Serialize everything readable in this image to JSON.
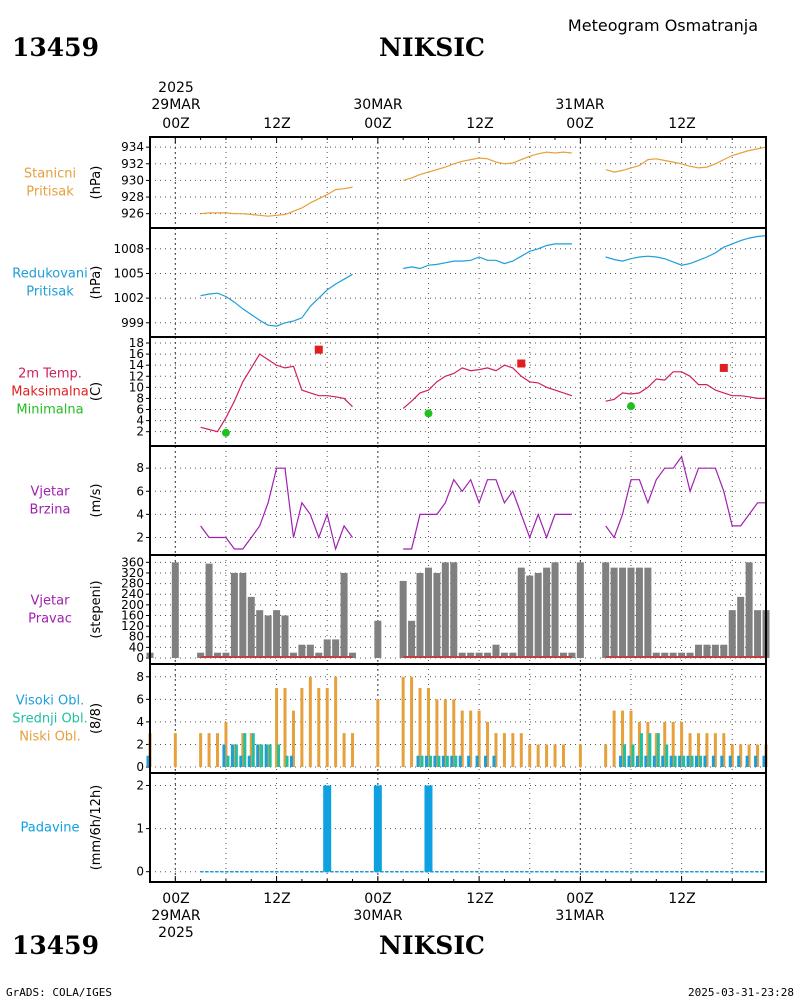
{
  "header": {
    "station_id": "13459",
    "station_name": "NIKSIC",
    "title": "Meteogram Osmatranja"
  },
  "footer": {
    "credit": "GrADS: COLA/IGES",
    "timestamp": "2025-03-31-23:28"
  },
  "time_axis": {
    "year": "2025",
    "day_labels": [
      "29MAR",
      "30MAR",
      "31MAR"
    ],
    "hour_labels": [
      "00Z",
      "12Z",
      "00Z",
      "12Z",
      "00Z",
      "12Z"
    ],
    "hour_values": [
      0,
      12,
      24,
      36,
      48,
      60
    ],
    "range": [
      -3,
      70
    ]
  },
  "colors": {
    "station_pressure": "#e6a03c",
    "sea_pressure": "#1e9ed8",
    "temp_label": "#d0205a",
    "temp_max": "#e02020",
    "temp_min": "#20c020",
    "wind": "#a020b0",
    "wind_dir_bar": "#808080",
    "wind_dir_line": "#c04040",
    "cloud_high": "#1e9ed8",
    "cloud_mid": "#20c0a0",
    "cloud_low": "#e6a03c",
    "precip": "#0ea0e0"
  },
  "chart_data": [
    {
      "type": "line",
      "name": "station_pressure",
      "label_lines": [
        "Stanicni",
        "Pritisak"
      ],
      "unit": "(hPa)",
      "ylim": [
        925,
        934.5
      ],
      "yticks": [
        926,
        928,
        930,
        932,
        934
      ],
      "x": [
        0,
        1,
        2,
        3,
        4,
        5,
        6,
        7,
        8,
        9,
        10,
        11,
        12,
        13,
        14,
        15,
        16,
        17,
        18,
        19,
        20,
        21
      ],
      "values": [
        926.1,
        926.2,
        926.2,
        926.1,
        926.1,
        926.0,
        926.0,
        925.9,
        925.8,
        925.8,
        925.8,
        925.8,
        925.9,
        926.1,
        926.5,
        927.0,
        927.5,
        928.0,
        928.5,
        929.0,
        929.1,
        929.3
      ],
      "segments": [
        {
          "x": [
            3,
            4,
            5,
            6,
            7,
            8,
            9,
            10,
            11,
            12,
            13,
            14,
            15,
            16,
            17,
            18,
            19,
            20,
            21
          ],
          "values": [
            926.0,
            926.1,
            926.1,
            926.1,
            926.0,
            926.0,
            925.9,
            925.8,
            925.7,
            925.8,
            925.9,
            926.3,
            926.7,
            927.3,
            927.8,
            928.3,
            928.9,
            929.0,
            929.2
          ]
        },
        {
          "x": [
            27,
            28,
            29,
            30,
            31,
            32,
            33,
            34,
            35,
            36,
            37,
            38,
            39,
            40,
            41,
            42,
            43,
            44,
            45,
            46,
            47
          ],
          "values": [
            930.0,
            930.3,
            930.7,
            931.0,
            931.3,
            931.6,
            932.0,
            932.3,
            932.5,
            932.7,
            932.6,
            932.2,
            932.0,
            932.1,
            932.5,
            932.9,
            933.2,
            933.4,
            933.3,
            933.4,
            933.3
          ]
        },
        {
          "x": [
            51,
            52,
            53,
            54,
            55,
            56,
            57,
            58,
            59,
            60,
            61,
            62,
            63,
            64,
            65,
            66,
            67,
            68,
            69,
            70
          ],
          "values": [
            931.3,
            931.0,
            931.2,
            931.5,
            931.8,
            932.5,
            932.6,
            932.4,
            932.2,
            932.0,
            931.7,
            931.5,
            931.6,
            932.0,
            932.5,
            933.0,
            933.3,
            933.6,
            933.8,
            934.0
          ]
        }
      ]
    },
    {
      "type": "line",
      "name": "sea_pressure",
      "label_lines": [
        "Redukovani",
        "Pritisak"
      ],
      "unit": "(hPa)",
      "ylim": [
        998,
        1009.8
      ],
      "yticks": [
        999,
        1002,
        1005,
        1008
      ],
      "segments": [
        {
          "x": [
            3,
            4,
            5,
            6,
            7,
            8,
            9,
            10,
            11,
            12,
            13,
            14,
            15,
            16,
            17,
            18,
            19,
            20,
            21
          ],
          "values": [
            1002.3,
            1002.5,
            1002.6,
            1002.2,
            1001.5,
            1000.7,
            1000.0,
            999.3,
            998.7,
            998.6,
            999.0,
            999.2,
            999.6,
            1001.0,
            1002.0,
            1003.0,
            1003.7,
            1004.3,
            1004.9
          ]
        },
        {
          "x": [
            27,
            28,
            29,
            30,
            31,
            32,
            33,
            34,
            35,
            36,
            37,
            38,
            39,
            40,
            41,
            42,
            43,
            44,
            45,
            46,
            47
          ],
          "values": [
            1005.6,
            1005.8,
            1005.6,
            1006.0,
            1006.1,
            1006.3,
            1006.5,
            1006.5,
            1006.6,
            1007.0,
            1006.6,
            1006.6,
            1006.2,
            1006.5,
            1007.1,
            1007.7,
            1008.0,
            1008.4,
            1008.6,
            1008.6,
            1008.6
          ]
        },
        {
          "x": [
            51,
            52,
            53,
            54,
            55,
            56,
            57,
            58,
            59,
            60,
            61,
            62,
            63,
            64,
            65,
            66,
            67,
            68,
            69,
            70
          ],
          "values": [
            1007.0,
            1006.7,
            1006.5,
            1006.8,
            1007.0,
            1007.1,
            1007.0,
            1006.8,
            1006.4,
            1006.0,
            1006.2,
            1006.6,
            1007.0,
            1007.5,
            1008.2,
            1008.6,
            1009.0,
            1009.3,
            1009.5,
            1009.6
          ]
        }
      ]
    },
    {
      "type": "line",
      "name": "temperature",
      "label_lines": [
        "2m Temp.",
        "Maksimalna",
        "Minimalna"
      ],
      "unit": "(C)",
      "ylim": [
        0.5,
        18
      ],
      "yticks": [
        2,
        4,
        6,
        8,
        10,
        12,
        14,
        16,
        18
      ],
      "segments": [
        {
          "x": [
            3,
            4,
            5,
            6,
            7,
            8,
            9,
            10,
            11,
            12,
            13,
            14,
            15,
            16,
            17,
            18,
            19,
            20,
            21
          ],
          "values": [
            2.8,
            2.4,
            2.0,
            4.5,
            7.5,
            11.0,
            13.5,
            16.0,
            15.0,
            14.0,
            13.5,
            13.8,
            9.5,
            9.0,
            8.5,
            8.5,
            8.3,
            8.0,
            6.5
          ]
        },
        {
          "x": [
            27,
            28,
            29,
            30,
            31,
            32,
            33,
            34,
            35,
            36,
            37,
            38,
            39,
            40,
            41,
            42,
            43,
            44,
            45,
            46,
            47
          ],
          "values": [
            6.2,
            7.5,
            9.0,
            9.5,
            11.0,
            12.0,
            12.5,
            13.5,
            13.0,
            13.2,
            13.5,
            13.0,
            14.0,
            13.5,
            12.0,
            11.0,
            10.8,
            10.0,
            9.5,
            9.0,
            8.5
          ]
        },
        {
          "x": [
            51,
            52,
            53,
            54,
            55,
            56,
            57,
            58,
            59,
            60,
            61,
            62,
            63,
            64,
            65,
            66,
            67,
            68,
            69,
            70
          ],
          "values": [
            7.5,
            7.8,
            9.0,
            8.8,
            9.0,
            10.0,
            11.5,
            11.3,
            12.8,
            12.8,
            12.0,
            10.5,
            10.5,
            9.5,
            9.0,
            8.5,
            8.5,
            8.3,
            8.0,
            8.0
          ]
        }
      ],
      "max_points": {
        "x": [
          17,
          41,
          65
        ],
        "values": [
          16.8,
          14.3,
          13.5
        ]
      },
      "min_points": {
        "x": [
          6,
          30,
          54
        ],
        "values": [
          1.8,
          5.3,
          6.6
        ]
      }
    },
    {
      "type": "line",
      "name": "wind_speed",
      "label_lines": [
        "Vjetar",
        "Brzina"
      ],
      "unit": "(m/s)",
      "ylim": [
        1,
        9.4
      ],
      "yticks": [
        2,
        4,
        6,
        8
      ],
      "segments": [
        {
          "x": [
            3,
            4,
            5,
            6,
            7,
            8,
            9,
            10,
            11,
            12,
            13,
            14,
            15,
            16,
            17,
            18,
            19,
            20,
            21
          ],
          "values": [
            3,
            2,
            2,
            2,
            1,
            1,
            2,
            3,
            5,
            8,
            8,
            2,
            5,
            4,
            2,
            4,
            1,
            3,
            2
          ]
        },
        {
          "x": [
            27,
            28,
            29,
            30,
            31,
            32,
            33,
            34,
            35,
            36,
            37,
            38,
            39,
            40,
            41,
            42,
            43,
            44,
            45,
            46,
            47
          ],
          "values": [
            1,
            1,
            4,
            4,
            4,
            5,
            7,
            6,
            7,
            5,
            7,
            7,
            5,
            6,
            4,
            2,
            4,
            2,
            4,
            4,
            4
          ]
        },
        {
          "x": [
            51,
            52,
            53,
            54,
            55,
            56,
            57,
            58,
            59,
            60,
            61,
            62,
            63,
            64,
            65,
            66,
            67,
            68,
            69,
            70
          ],
          "values": [
            3,
            2,
            4,
            7,
            7,
            5,
            7,
            8,
            8,
            9,
            6,
            8,
            8,
            8,
            6,
            3,
            3,
            4,
            5,
            5
          ]
        }
      ]
    },
    {
      "type": "bar",
      "name": "wind_direction",
      "label_lines": [
        "Vjetar",
        "Pravac"
      ],
      "unit": "(stepeni)",
      "ylim": [
        0,
        365
      ],
      "yticks": [
        0,
        40,
        80,
        120,
        160,
        200,
        240,
        280,
        320,
        360
      ],
      "x": [
        -3,
        0,
        3,
        4,
        5,
        6,
        7,
        8,
        9,
        10,
        11,
        12,
        13,
        14,
        15,
        16,
        17,
        18,
        19,
        20,
        21,
        24,
        27,
        28,
        29,
        30,
        31,
        32,
        33,
        34,
        35,
        36,
        37,
        38,
        39,
        40,
        41,
        42,
        43,
        44,
        45,
        46,
        47,
        48,
        51,
        52,
        53,
        54,
        55,
        56,
        57,
        58,
        59,
        60,
        61,
        62,
        63,
        64,
        65,
        66,
        67,
        68,
        69,
        70
      ],
      "values": [
        20,
        360,
        20,
        355,
        20,
        20,
        320,
        320,
        230,
        180,
        160,
        180,
        160,
        20,
        50,
        50,
        20,
        70,
        70,
        320,
        20,
        140,
        290,
        140,
        320,
        340,
        320,
        360,
        360,
        20,
        20,
        20,
        20,
        50,
        20,
        20,
        340,
        310,
        320,
        340,
        360,
        20,
        20,
        360,
        360,
        340,
        340,
        340,
        340,
        340,
        20,
        20,
        20,
        20,
        20,
        50,
        50,
        50,
        50,
        180,
        230,
        360,
        180,
        180
      ]
    },
    {
      "type": "bar",
      "name": "cloud_cover",
      "label_lines": [
        "Visoki Obl.",
        "Srednji Obl.",
        "Niski Obl."
      ],
      "unit": "(8/8)",
      "ylim": [
        0,
        8.6
      ],
      "yticks": [
        0,
        2,
        4,
        6,
        8
      ],
      "series": [
        {
          "name": "Niski Obl.",
          "x": [
            -3,
            0,
            3,
            4,
            5,
            6,
            7,
            8,
            9,
            10,
            11,
            12,
            13,
            14,
            15,
            16,
            17,
            18,
            19,
            20,
            21,
            24,
            27,
            28,
            29,
            30,
            31,
            32,
            33,
            34,
            35,
            36,
            37,
            38,
            39,
            40,
            41,
            42,
            43,
            44,
            45,
            46,
            47,
            48,
            51,
            52,
            53,
            54,
            55,
            56,
            57,
            58,
            59,
            60,
            61,
            62,
            63,
            64,
            65,
            66,
            67,
            68,
            69,
            70
          ],
          "values": [
            3,
            3,
            3,
            3,
            3,
            4,
            2,
            3,
            3,
            2,
            2,
            7,
            7,
            5,
            7,
            8,
            7,
            7,
            8,
            3,
            3,
            6,
            8,
            8,
            7,
            7,
            6,
            6,
            6,
            5,
            5,
            5,
            4,
            3,
            3,
            3,
            3,
            2,
            2,
            2,
            2,
            2,
            0,
            2,
            2,
            5,
            5,
            5,
            4,
            4,
            3,
            4,
            4,
            4,
            3,
            3,
            3,
            3,
            3,
            2,
            2,
            2,
            2,
            2
          ]
        },
        {
          "name": "Srednji Obl.",
          "x": [
            6,
            7,
            8,
            9,
            10,
            11,
            12,
            13,
            29,
            30,
            31,
            32,
            33,
            53,
            54,
            55,
            56,
            57,
            58,
            59,
            60,
            61,
            62
          ],
          "values": [
            1,
            2,
            3,
            3,
            2,
            2,
            2,
            1,
            1,
            1,
            1,
            1,
            1,
            2,
            2,
            3,
            3,
            3,
            2,
            1,
            1,
            1,
            1
          ]
        },
        {
          "name": "Visoki Obl.",
          "x": [
            -3,
            6,
            7,
            8,
            9,
            10,
            11,
            14,
            29,
            30,
            31,
            32,
            33,
            34,
            35,
            36,
            37,
            38,
            53,
            54,
            55,
            56,
            57,
            58,
            59,
            60,
            61,
            62,
            63,
            64,
            65,
            66,
            67,
            68,
            69,
            70
          ],
          "values": [
            1,
            2,
            2,
            1,
            1,
            2,
            2,
            1,
            1,
            1,
            1,
            1,
            1,
            1,
            1,
            1,
            1,
            1,
            1,
            1,
            1,
            1,
            1,
            1,
            1,
            1,
            1,
            1,
            1,
            1,
            1,
            1,
            1,
            1,
            1,
            1
          ]
        }
      ]
    },
    {
      "type": "bar",
      "name": "precipitation",
      "label_lines": [
        "Padavine"
      ],
      "unit": "(mm/6h/12h)",
      "ylim": [
        -0.1,
        2.15
      ],
      "yticks": [
        0,
        1,
        2
      ],
      "x": [
        18,
        24,
        30
      ],
      "values": [
        2.0,
        2.0,
        2.0
      ]
    }
  ]
}
